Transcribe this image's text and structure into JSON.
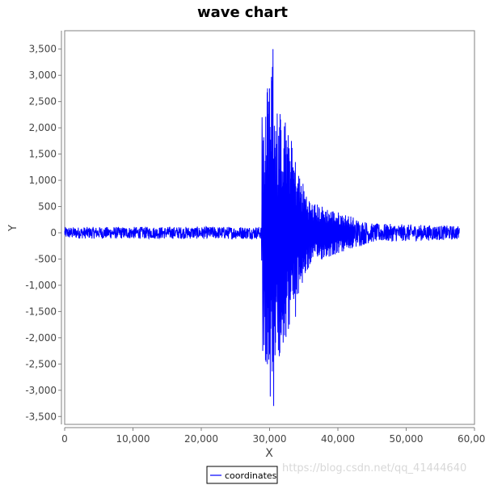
{
  "chart_data": {
    "type": "line",
    "title": "wave chart",
    "xlabel": "X",
    "ylabel": "Y",
    "xlim": [
      0,
      60000
    ],
    "ylim": [
      -3650,
      3850
    ],
    "x_ticks": [
      0,
      10000,
      20000,
      30000,
      40000,
      50000,
      60000
    ],
    "x_tick_labels": [
      "0",
      "10,000",
      "20,000",
      "30,000",
      "40,000",
      "50,000",
      "60,000"
    ],
    "y_ticks": [
      3500,
      3000,
      2500,
      2000,
      1500,
      1000,
      500,
      0,
      -500,
      -1000,
      -1500,
      -2000,
      -2500,
      -3000,
      -3500
    ],
    "y_tick_labels": [
      "3,500",
      "3,000",
      "2,500",
      "2,000",
      "1,500",
      "1,000",
      "500",
      "0",
      "-500",
      "-1,000",
      "-1,500",
      "-2,000",
      "-2,500",
      "-3,000",
      "-3,500"
    ],
    "grid": false,
    "legend_position": "bottom-center",
    "series": [
      {
        "name": "coordinates",
        "color": "#0000ff",
        "x_range": [
          0,
          57800
        ],
        "envelope": [
          {
            "x": 0,
            "amp": 110
          },
          {
            "x": 28800,
            "amp": 120
          },
          {
            "x": 29000,
            "amp": 2200
          },
          {
            "x": 29600,
            "amp": 2700
          },
          {
            "x": 30300,
            "amp": 3500
          },
          {
            "x": 31000,
            "amp": 2500
          },
          {
            "x": 32500,
            "amp": 2000
          },
          {
            "x": 34500,
            "amp": 1100
          },
          {
            "x": 36000,
            "amp": 600
          },
          {
            "x": 40000,
            "amp": 400
          },
          {
            "x": 45000,
            "amp": 180
          },
          {
            "x": 57800,
            "amp": 130
          }
        ],
        "peaks": [
          {
            "x": 30500,
            "y": 3500
          },
          {
            "x": 30600,
            "y": -3300
          },
          {
            "x": 29700,
            "y": 2750
          },
          {
            "x": 29000,
            "y": -2250
          },
          {
            "x": 28900,
            "y": 2200
          },
          {
            "x": 32300,
            "y": 2100
          },
          {
            "x": 31200,
            "y": -1900
          },
          {
            "x": 33200,
            "y": 1750
          },
          {
            "x": 33800,
            "y": -1600
          }
        ]
      }
    ]
  },
  "legend": {
    "label": "coordinates"
  },
  "watermark": {
    "text": "https://blog.csdn.net/qq_41444640"
  }
}
